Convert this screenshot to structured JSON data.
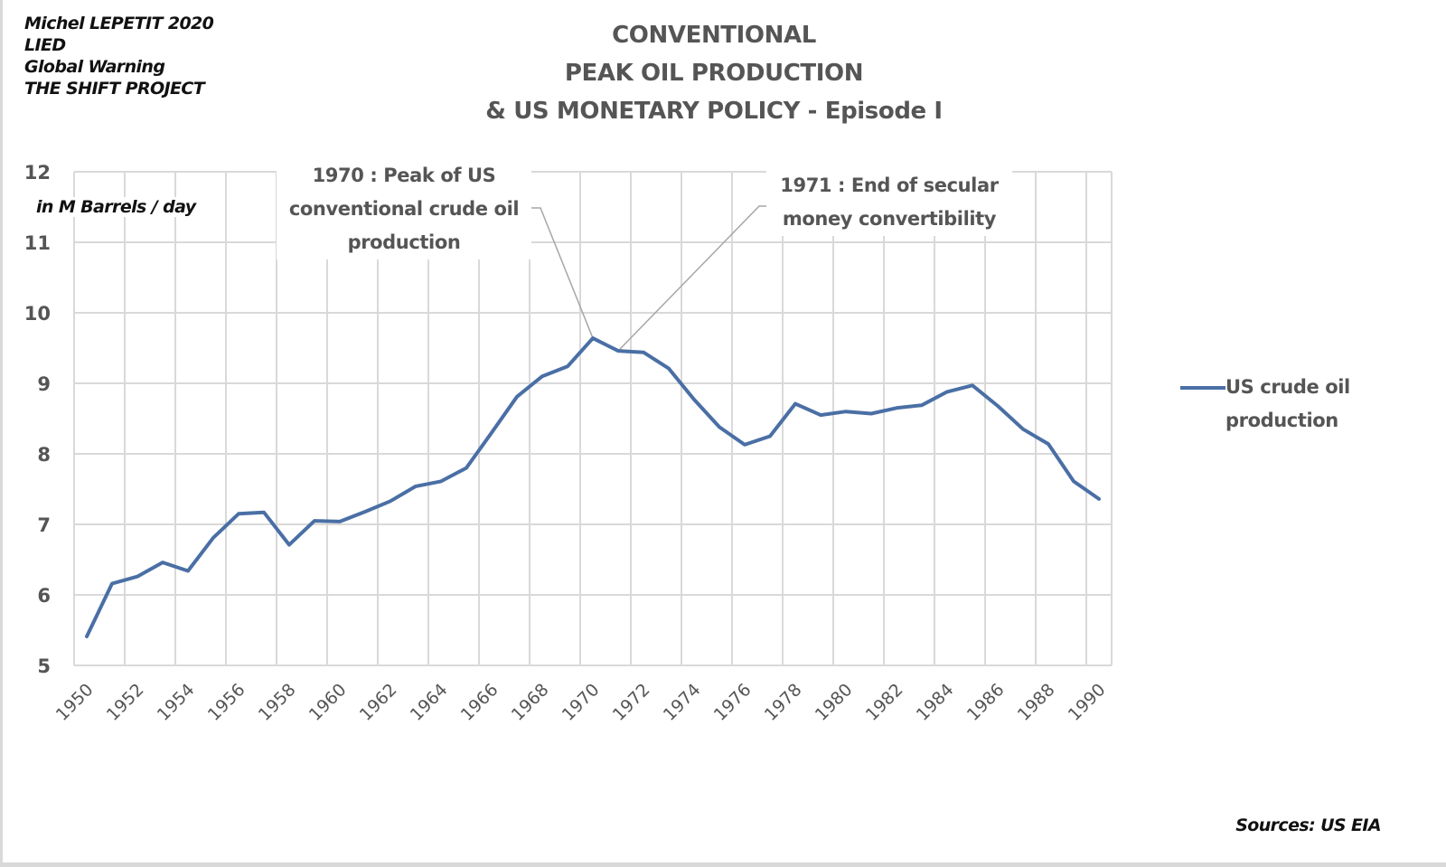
{
  "header": {
    "author_lines": [
      "Michel LEPETIT 2020",
      "LIED",
      "Global Warning",
      "THE SHIFT PROJECT"
    ]
  },
  "footer": {
    "source": "Sources: US EIA"
  },
  "colors": {
    "series": "#4a6fa5",
    "grid": "#d9d9d9",
    "text": "#555555",
    "leader": "#a6a6a6"
  },
  "chart_data": {
    "type": "line",
    "title_lines": [
      "CONVENTIONAL",
      "PEAK OIL PRODUCTION",
      "& US MONETARY POLICY - Episode I"
    ],
    "ylabel": "in M Barrels / day",
    "xlabel": "",
    "ylim": [
      5,
      12
    ],
    "yticks": [
      "5",
      "6",
      "7",
      "8",
      "9",
      "10",
      "11",
      "12"
    ],
    "xlim": [
      1950,
      1990
    ],
    "xtick_labels": [
      "1950",
      "1952",
      "1954",
      "1956",
      "1958",
      "1960",
      "1962",
      "1964",
      "1966",
      "1968",
      "1970",
      "1972",
      "1974",
      "1976",
      "1978",
      "1980",
      "1982",
      "1984",
      "1986",
      "1988",
      "1990"
    ],
    "grid": true,
    "legend_position": "right",
    "x": [
      1950,
      1951,
      1952,
      1953,
      1954,
      1955,
      1956,
      1957,
      1958,
      1959,
      1960,
      1961,
      1962,
      1963,
      1964,
      1965,
      1966,
      1967,
      1968,
      1969,
      1970,
      1971,
      1972,
      1973,
      1974,
      1975,
      1976,
      1977,
      1978,
      1979,
      1980,
      1981,
      1982,
      1983,
      1984,
      1985,
      1986,
      1987,
      1988,
      1989,
      1990
    ],
    "series": [
      {
        "name": "US crude oil production",
        "values": [
          5.41,
          6.16,
          6.26,
          6.46,
          6.34,
          6.81,
          7.15,
          7.17,
          6.71,
          7.05,
          7.04,
          7.18,
          7.33,
          7.54,
          7.61,
          7.8,
          8.3,
          8.81,
          9.1,
          9.24,
          9.64,
          9.46,
          9.44,
          9.21,
          8.77,
          8.38,
          8.13,
          8.25,
          8.71,
          8.55,
          8.6,
          8.57,
          8.65,
          8.69,
          8.88,
          8.97,
          8.68,
          8.35,
          8.14,
          7.61,
          7.36
        ]
      }
    ],
    "annotations": [
      {
        "year": 1970,
        "lines": [
          "1970 : Peak of US",
          "conventional crude oil",
          "production"
        ]
      },
      {
        "year": 1971,
        "lines": [
          "1971 : End of secular",
          "money  convertibility"
        ]
      }
    ]
  }
}
